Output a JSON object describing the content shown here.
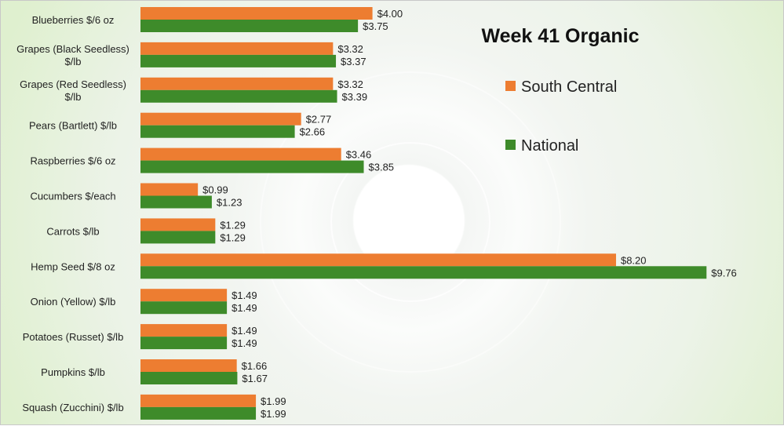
{
  "chart_data": {
    "type": "bar",
    "orientation": "horizontal",
    "title": "Week 41 Organic",
    "categories": [
      [
        "Blueberries $/6 oz"
      ],
      [
        "Grapes (Black Seedless)",
        "$/lb"
      ],
      [
        "Grapes (Red Seedless)",
        "$/lb"
      ],
      [
        "Pears (Bartlett) $/lb"
      ],
      [
        "Raspberries $/6 oz"
      ],
      [
        "Cucumbers $/each"
      ],
      [
        "Carrots $/lb"
      ],
      [
        "Hemp Seed $/8 oz"
      ],
      [
        "Onion (Yellow) $/lb"
      ],
      [
        "Potatoes (Russet) $/lb"
      ],
      [
        "Pumpkins $/lb"
      ],
      [
        "Squash (Zucchini) $/lb"
      ]
    ],
    "series": [
      {
        "name": "South Central",
        "color": "#ED7D31",
        "values": [
          4.0,
          3.32,
          3.32,
          2.77,
          3.46,
          0.99,
          1.29,
          8.2,
          1.49,
          1.49,
          1.66,
          1.99
        ],
        "labels": [
          "$4.00",
          "$3.32",
          "$3.32",
          "$2.77",
          "$3.46",
          "$0.99",
          "$1.29",
          "$8.20",
          "$1.49",
          "$1.49",
          "$1.66",
          "$1.99"
        ]
      },
      {
        "name": "National",
        "color": "#3E8B2A",
        "values": [
          3.75,
          3.37,
          3.39,
          2.66,
          3.85,
          1.23,
          1.29,
          9.76,
          1.49,
          1.49,
          1.67,
          1.99
        ],
        "labels": [
          "$3.75",
          "$3.37",
          "$3.39",
          "$2.66",
          "$3.85",
          "$1.23",
          "$1.29",
          "$9.76",
          "$1.49",
          "$1.49",
          "$1.67",
          "$1.99"
        ]
      }
    ],
    "xlim": [
      0,
      10
    ],
    "grid": false,
    "legend_position": "right"
  }
}
